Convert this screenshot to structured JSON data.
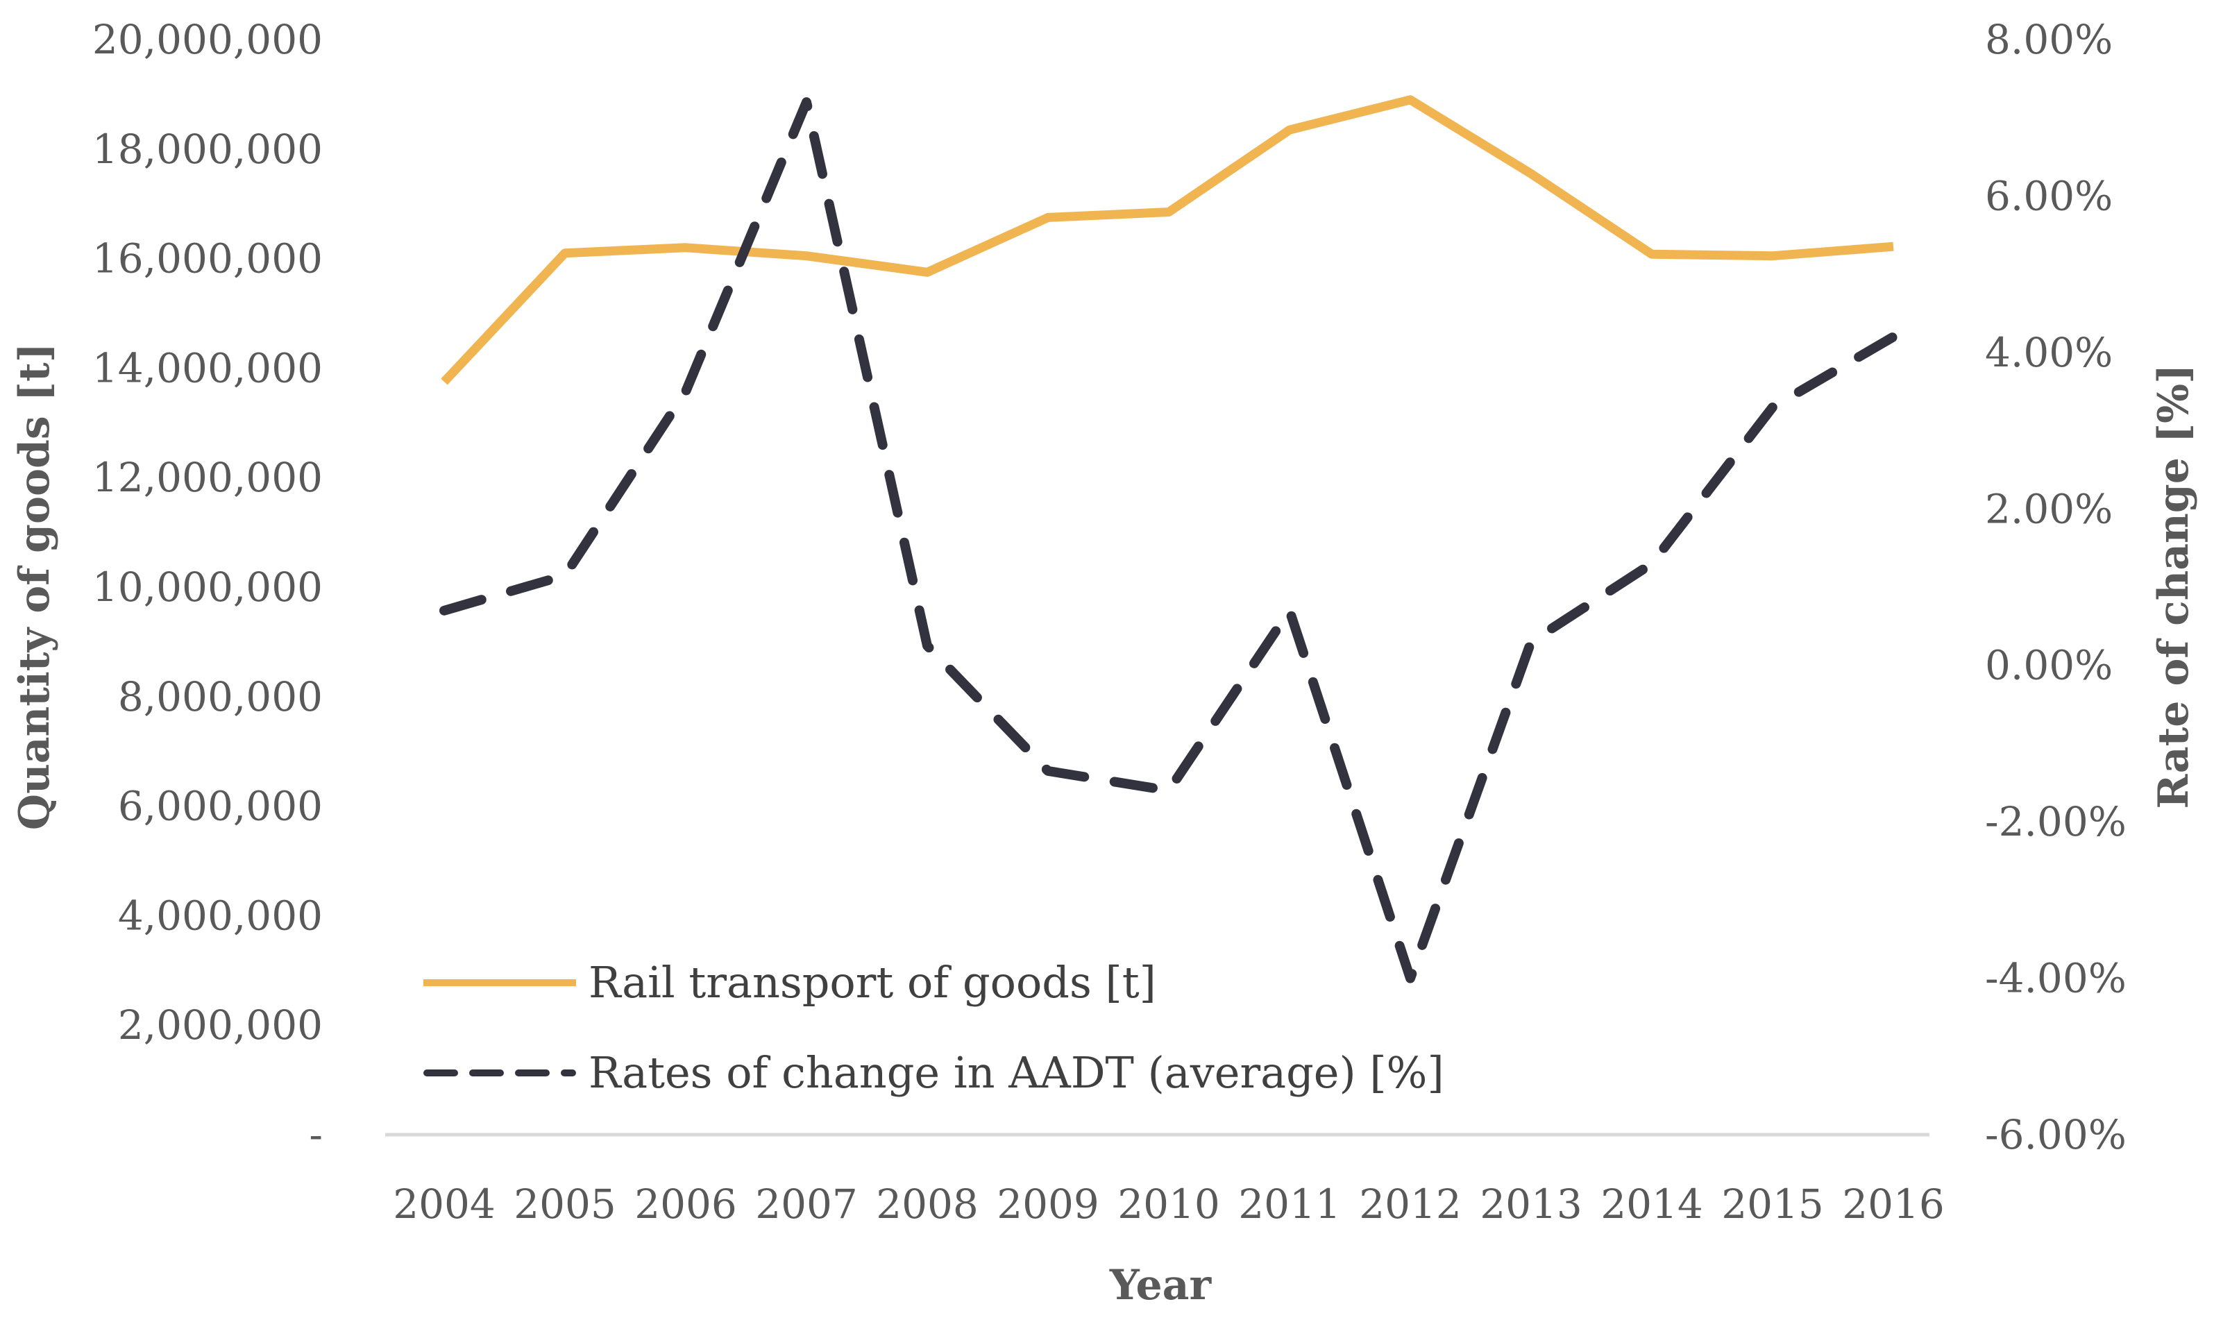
{
  "chart_data": {
    "type": "line",
    "title": "",
    "categories": [
      "2004",
      "2005",
      "2006",
      "2007",
      "2008",
      "2009",
      "2010",
      "2011",
      "2012",
      "2013",
      "2014",
      "2015",
      "2016"
    ],
    "xlabel": "Year",
    "ylabel": "Quantity of goods [t]",
    "y2label": "Rate of change [%]",
    "ylim": [
      0,
      20000000
    ],
    "y2lim": [
      -6,
      8
    ],
    "y_ticks": [
      "-",
      "2,000,000",
      "4,000,000",
      "6,000,000",
      "8,000,000",
      "10,000,000",
      "12,000,000",
      "14,000,000",
      "16,000,000",
      "18,000,000",
      "20,000,000"
    ],
    "y2_ticks": [
      "-6.00%",
      "-4.00%",
      "-2.00%",
      "0.00%",
      "2.00%",
      "4.00%",
      "6.00%",
      "8.00%"
    ],
    "legend_position": "bottom-left inside plot",
    "series": [
      {
        "name": "Rail transport of goods [t]",
        "axis": "left",
        "style": "solid",
        "color": "#F0B450",
        "values": [
          13750000,
          16100000,
          16200000,
          16050000,
          15750000,
          16750000,
          16850000,
          18350000,
          18900000,
          17550000,
          16080000,
          16050000,
          16220000
        ]
      },
      {
        "name": "Rates of change in AADT (average) [%]",
        "axis": "right",
        "style": "dashed",
        "color": "#33333F",
        "values": [
          0.7,
          1.15,
          3.5,
          7.2,
          0.25,
          -1.35,
          -1.6,
          0.7,
          -4.0,
          0.3,
          1.3,
          3.3,
          4.2
        ]
      }
    ]
  }
}
